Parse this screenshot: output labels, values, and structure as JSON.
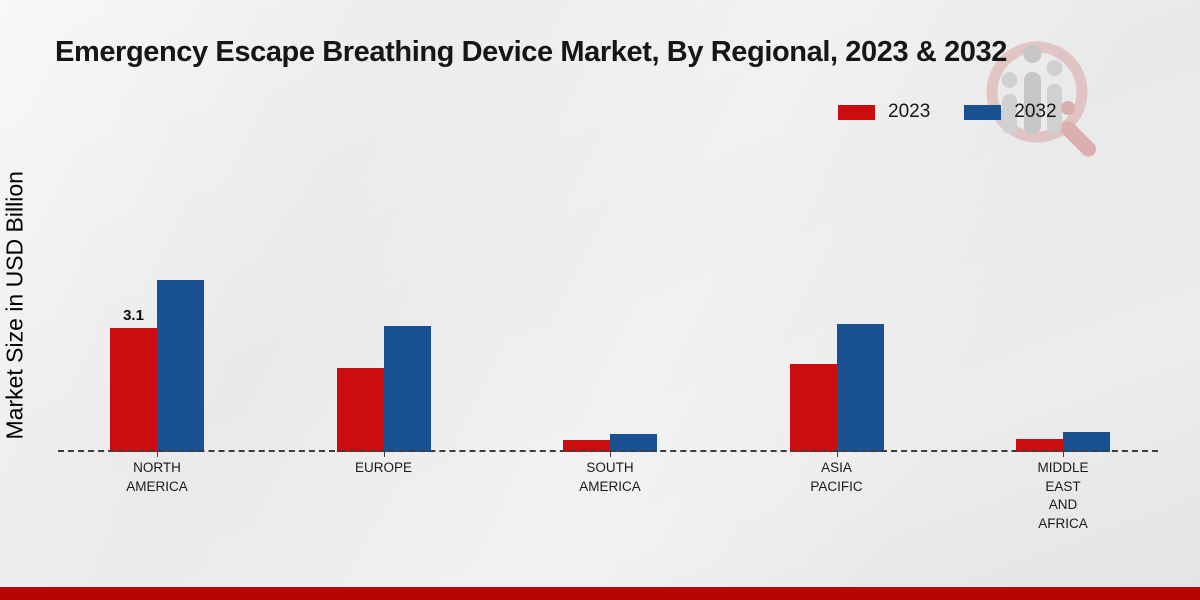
{
  "title": "Emergency Escape Breathing Device Market, By Regional, 2023 & 2032",
  "y_axis_label": "Market Size in USD Billion",
  "legend": {
    "items": [
      {
        "label": "2023",
        "color": "#cb0d0f"
      },
      {
        "label": "2032",
        "color": "#1a5190"
      }
    ]
  },
  "watermark_name": "market-research-magnifier-logo",
  "footer": {
    "band_color": "#b70403"
  },
  "chart_data": {
    "type": "bar",
    "title": "Emergency Escape Breathing Device Market, By Regional, 2023 & 2032",
    "ylabel": "Market Size in USD Billion",
    "xlabel": "",
    "categories": [
      "North America",
      "Europe",
      "South America",
      "Asia Pacific",
      "Middle East and Africa"
    ],
    "category_label_lines": [
      [
        "NORTH",
        "AMERICA"
      ],
      [
        "EUROPE"
      ],
      [
        "SOUTH",
        "AMERICA"
      ],
      [
        "ASIA",
        "PACIFIC"
      ],
      [
        "MIDDLE",
        "EAST",
        "AND",
        "AFRICA"
      ]
    ],
    "series": [
      {
        "name": "2023",
        "color": "#cb0d0f",
        "values": [
          3.1,
          2.1,
          0.3,
          2.2,
          0.32
        ]
      },
      {
        "name": "2032",
        "color": "#1a5190",
        "values": [
          4.3,
          3.15,
          0.45,
          3.2,
          0.5
        ]
      }
    ],
    "data_labels": [
      {
        "series": "2023",
        "category_index": 0,
        "text": "3.1"
      }
    ],
    "ylim": [
      0,
      4.5
    ],
    "grid": false,
    "baseline_style": "dashed",
    "legend_position": "top-right",
    "units": "USD Billion"
  }
}
